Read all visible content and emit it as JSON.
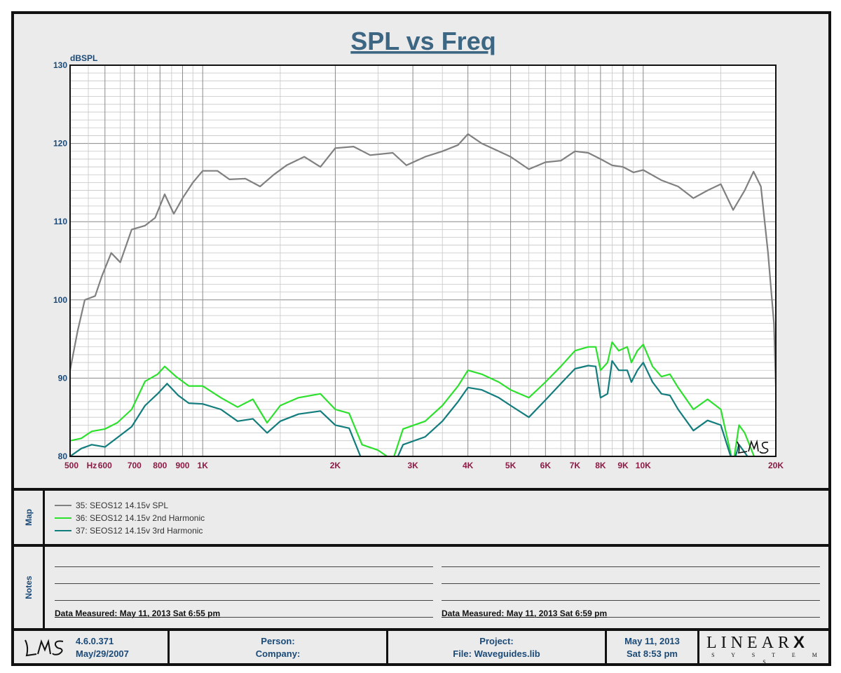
{
  "chart_data": {
    "type": "line",
    "title": "SPL vs Freq",
    "ylabel": "dBSPL",
    "xscale": "log",
    "xlim": [
      500,
      20000
    ],
    "ylim": [
      80,
      130
    ],
    "grid": true,
    "y_ticks": [
      80,
      90,
      100,
      110,
      120,
      130
    ],
    "x_ticks": [
      {
        "v": 500,
        "label": "500"
      },
      {
        "v": 560,
        "label": "Hz"
      },
      {
        "v": 600,
        "label": "600"
      },
      {
        "v": 700,
        "label": "700"
      },
      {
        "v": 800,
        "label": "800"
      },
      {
        "v": 900,
        "label": "900"
      },
      {
        "v": 1000,
        "label": "1K"
      },
      {
        "v": 2000,
        "label": "2K"
      },
      {
        "v": 3000,
        "label": "3K"
      },
      {
        "v": 4000,
        "label": "4K"
      },
      {
        "v": 5000,
        "label": "5K"
      },
      {
        "v": 6000,
        "label": "6K"
      },
      {
        "v": 7000,
        "label": "7K"
      },
      {
        "v": 8000,
        "label": "8K"
      },
      {
        "v": 9000,
        "label": "9K"
      },
      {
        "v": 10000,
        "label": "10K"
      },
      {
        "v": 20000,
        "label": "20K"
      }
    ],
    "series": [
      {
        "name": "35: SEOS12 14.15v SPL",
        "color": "#808080",
        "points": [
          [
            500,
            91
          ],
          [
            520,
            96
          ],
          [
            540,
            100
          ],
          [
            570,
            100.5
          ],
          [
            590,
            103
          ],
          [
            620,
            106
          ],
          [
            650,
            104.8
          ],
          [
            690,
            109
          ],
          [
            740,
            109.5
          ],
          [
            780,
            110.5
          ],
          [
            820,
            113.5
          ],
          [
            860,
            111
          ],
          [
            900,
            113
          ],
          [
            950,
            115
          ],
          [
            1000,
            116.5
          ],
          [
            1080,
            116.5
          ],
          [
            1150,
            115.4
          ],
          [
            1250,
            115.5
          ],
          [
            1350,
            114.5
          ],
          [
            1450,
            116
          ],
          [
            1550,
            117.2
          ],
          [
            1700,
            118.3
          ],
          [
            1850,
            117
          ],
          [
            2000,
            119.4
          ],
          [
            2200,
            119.6
          ],
          [
            2400,
            118.5
          ],
          [
            2700,
            118.8
          ],
          [
            2900,
            117.2
          ],
          [
            3200,
            118.3
          ],
          [
            3500,
            119
          ],
          [
            3800,
            119.8
          ],
          [
            4000,
            121.2
          ],
          [
            4300,
            120
          ],
          [
            4700,
            119
          ],
          [
            5000,
            118.3
          ],
          [
            5500,
            116.7
          ],
          [
            6000,
            117.6
          ],
          [
            6500,
            117.8
          ],
          [
            7000,
            119
          ],
          [
            7500,
            118.8
          ],
          [
            8000,
            118
          ],
          [
            8500,
            117.2
          ],
          [
            9000,
            117
          ],
          [
            9500,
            116.3
          ],
          [
            10000,
            116.6
          ],
          [
            11000,
            115.3
          ],
          [
            12000,
            114.5
          ],
          [
            13000,
            113
          ],
          [
            14000,
            114
          ],
          [
            15000,
            114.8
          ],
          [
            16000,
            111.5
          ],
          [
            17000,
            114
          ],
          [
            17800,
            116.4
          ],
          [
            18500,
            114.5
          ],
          [
            19200,
            106
          ],
          [
            19800,
            97
          ],
          [
            20000,
            89
          ]
        ]
      },
      {
        "name": "36: SEOS12 14.15v 2nd Harmonic",
        "color": "#2de02d",
        "points": [
          [
            500,
            82
          ],
          [
            530,
            82.3
          ],
          [
            560,
            83.2
          ],
          [
            600,
            83.5
          ],
          [
            640,
            84.3
          ],
          [
            690,
            86
          ],
          [
            740,
            89.6
          ],
          [
            790,
            90.5
          ],
          [
            820,
            91.5
          ],
          [
            870,
            90.2
          ],
          [
            930,
            89
          ],
          [
            1000,
            89
          ],
          [
            1100,
            87.5
          ],
          [
            1200,
            86.3
          ],
          [
            1300,
            87.3
          ],
          [
            1400,
            84.3
          ],
          [
            1500,
            86.5
          ],
          [
            1650,
            87.5
          ],
          [
            1850,
            88
          ],
          [
            2000,
            86
          ],
          [
            2150,
            85.5
          ],
          [
            2300,
            81.5
          ],
          [
            2500,
            80.8
          ],
          [
            2700,
            79.5
          ],
          [
            2850,
            83.5
          ],
          [
            3200,
            84.5
          ],
          [
            3500,
            86.5
          ],
          [
            3800,
            89
          ],
          [
            4000,
            91
          ],
          [
            4300,
            90.5
          ],
          [
            4700,
            89.5
          ],
          [
            5000,
            88.5
          ],
          [
            5500,
            87.5
          ],
          [
            6000,
            89.5
          ],
          [
            6500,
            91.5
          ],
          [
            7000,
            93.5
          ],
          [
            7500,
            94
          ],
          [
            7800,
            94
          ],
          [
            8000,
            91
          ],
          [
            8300,
            92
          ],
          [
            8500,
            94.6
          ],
          [
            8800,
            93.5
          ],
          [
            9200,
            94
          ],
          [
            9400,
            92
          ],
          [
            9700,
            93.5
          ],
          [
            10000,
            94.3
          ],
          [
            10500,
            91.5
          ],
          [
            11000,
            90.2
          ],
          [
            11500,
            90.5
          ],
          [
            12000,
            88.8
          ],
          [
            13000,
            86
          ],
          [
            14000,
            87.3
          ],
          [
            15000,
            86
          ],
          [
            16000,
            79
          ],
          [
            16500,
            84
          ],
          [
            17000,
            83
          ],
          [
            18000,
            79.5
          ]
        ]
      },
      {
        "name": "37: SEOS12 14.15v 3rd Harmonic",
        "color": "#137c7c",
        "points": [
          [
            500,
            80
          ],
          [
            530,
            81
          ],
          [
            560,
            81.5
          ],
          [
            600,
            81.2
          ],
          [
            640,
            82.4
          ],
          [
            690,
            83.8
          ],
          [
            740,
            86.5
          ],
          [
            790,
            88
          ],
          [
            830,
            89.3
          ],
          [
            880,
            87.8
          ],
          [
            930,
            86.8
          ],
          [
            1000,
            86.7
          ],
          [
            1100,
            86
          ],
          [
            1200,
            84.5
          ],
          [
            1300,
            84.8
          ],
          [
            1400,
            83
          ],
          [
            1500,
            84.5
          ],
          [
            1650,
            85.4
          ],
          [
            1850,
            85.8
          ],
          [
            2000,
            84
          ],
          [
            2150,
            83.6
          ],
          [
            2300,
            79.5
          ],
          [
            2500,
            78.5
          ],
          [
            2700,
            78.5
          ],
          [
            2850,
            81.5
          ],
          [
            3200,
            82.5
          ],
          [
            3500,
            84.5
          ],
          [
            3800,
            87
          ],
          [
            4000,
            88.8
          ],
          [
            4300,
            88.5
          ],
          [
            4700,
            87.5
          ],
          [
            5000,
            86.5
          ],
          [
            5500,
            85
          ],
          [
            6000,
            87.2
          ],
          [
            6500,
            89.3
          ],
          [
            7000,
            91.2
          ],
          [
            7500,
            91.6
          ],
          [
            7800,
            91.5
          ],
          [
            8000,
            87.5
          ],
          [
            8300,
            88
          ],
          [
            8500,
            92.2
          ],
          [
            8800,
            91
          ],
          [
            9200,
            91
          ],
          [
            9400,
            89.5
          ],
          [
            9700,
            91
          ],
          [
            10000,
            92
          ],
          [
            10500,
            89.5
          ],
          [
            11000,
            88
          ],
          [
            11500,
            87.8
          ],
          [
            12000,
            86
          ],
          [
            13000,
            83.3
          ],
          [
            14000,
            84.6
          ],
          [
            15000,
            84
          ],
          [
            16000,
            79
          ],
          [
            16500,
            81.5
          ],
          [
            17000,
            80.5
          ],
          [
            18000,
            78.5
          ]
        ]
      }
    ]
  },
  "map": {
    "label": "Map",
    "entries": [
      {
        "text": "35: SEOS12 14.15v SPL",
        "color": "#808080"
      },
      {
        "text": "36: SEOS12 14.15v 2nd Harmonic",
        "color": "#2de02d"
      },
      {
        "text": "37: SEOS12 14.15v 3rd Harmonic",
        "color": "#137c7c"
      }
    ]
  },
  "notes": {
    "label": "Notes",
    "left_measured": "Data Measured: May 11, 2013  Sat  6:55 pm",
    "right_measured": "Data Measured: May 11, 2013  Sat  6:59 pm"
  },
  "footer": {
    "version": "4.6.0.371",
    "version_date": "May/29/2007",
    "person": "Person:",
    "company": "Company:",
    "project": "Project:",
    "file": "File: Waveguides.lib",
    "date": "May 11, 2013",
    "time": "Sat  8:53 pm",
    "brand": "LINEAR",
    "brand_x": "X",
    "brand_sub": "S Y S T E M S",
    "logo": "LMS"
  }
}
